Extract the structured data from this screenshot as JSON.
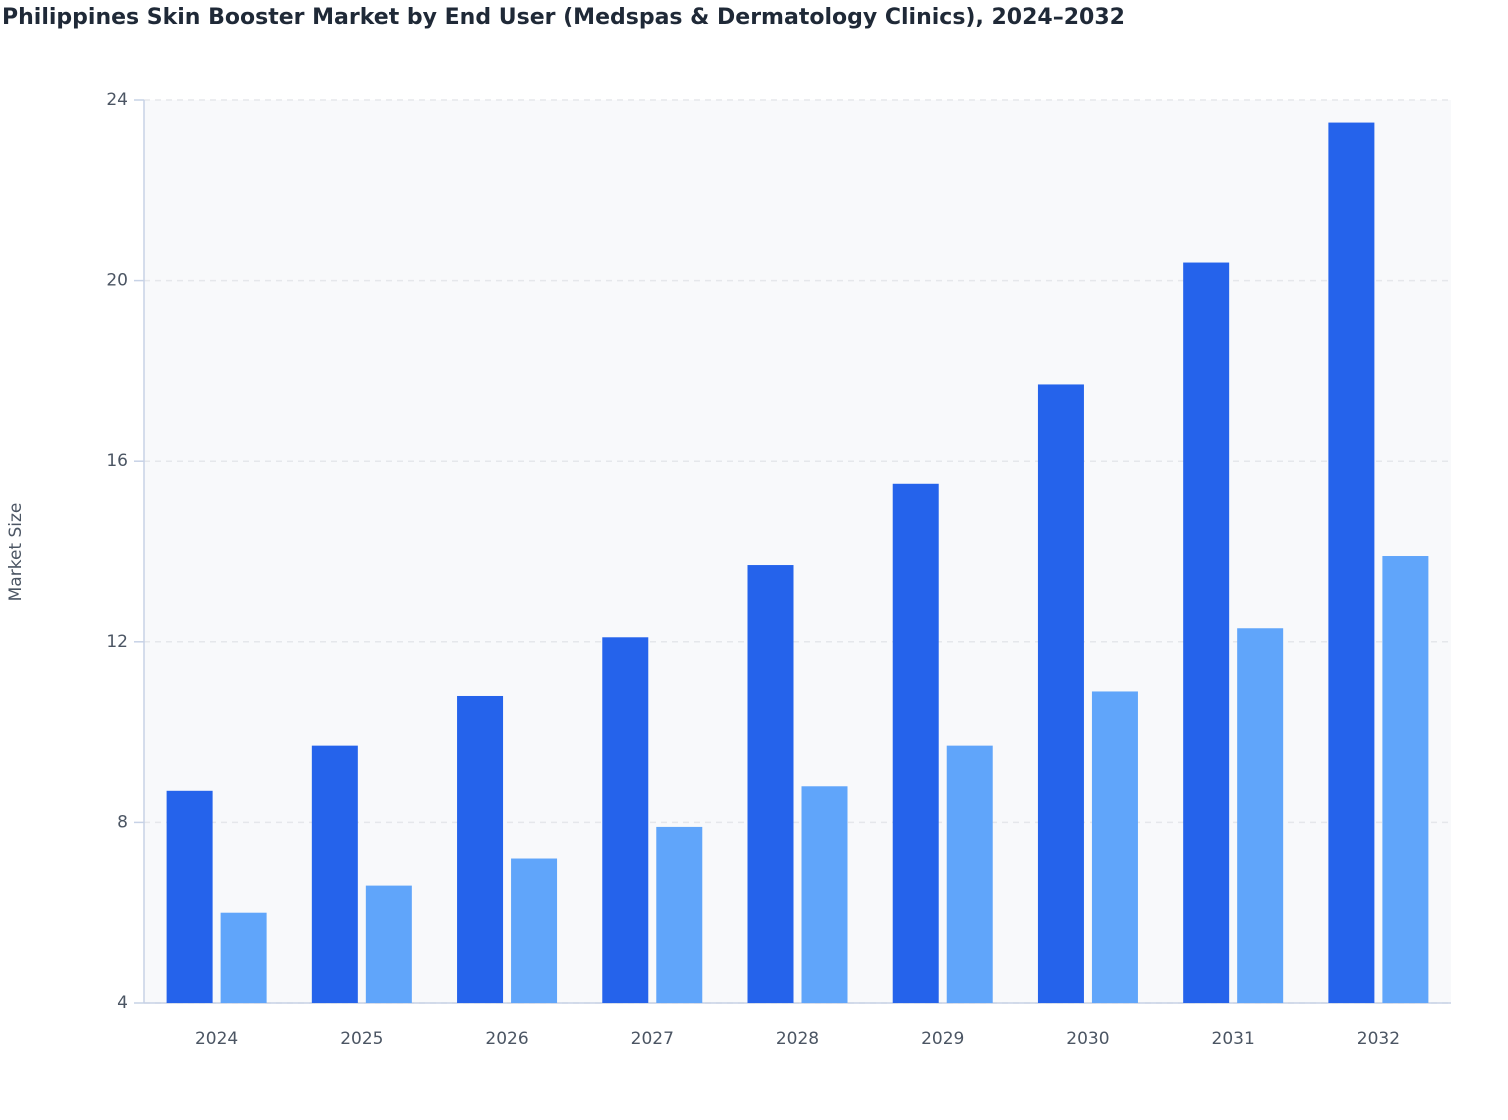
{
  "chart_data": {
    "type": "bar",
    "title": "Philippines Skin Booster Market by End User (Medspas & Dermatology Clinics), 2024–2032",
    "y_label": "Market Size",
    "categories": [
      "2024",
      "2025",
      "2026",
      "2027",
      "2028",
      "2029",
      "2030",
      "2031",
      "2032"
    ],
    "series": [
      {
        "color": "#2563eb",
        "values": [
          8.7,
          9.7,
          10.8,
          12.1,
          13.7,
          15.5,
          17.7,
          20.4,
          23.5
        ]
      },
      {
        "color": "#60a5fa",
        "values": [
          6.0,
          6.6,
          7.2,
          7.9,
          8.8,
          9.7,
          10.9,
          12.3,
          13.9
        ]
      }
    ],
    "ylim": [
      4,
      24
    ],
    "yticks": [
      4,
      8,
      12,
      16,
      20,
      24
    ],
    "grid": true
  }
}
